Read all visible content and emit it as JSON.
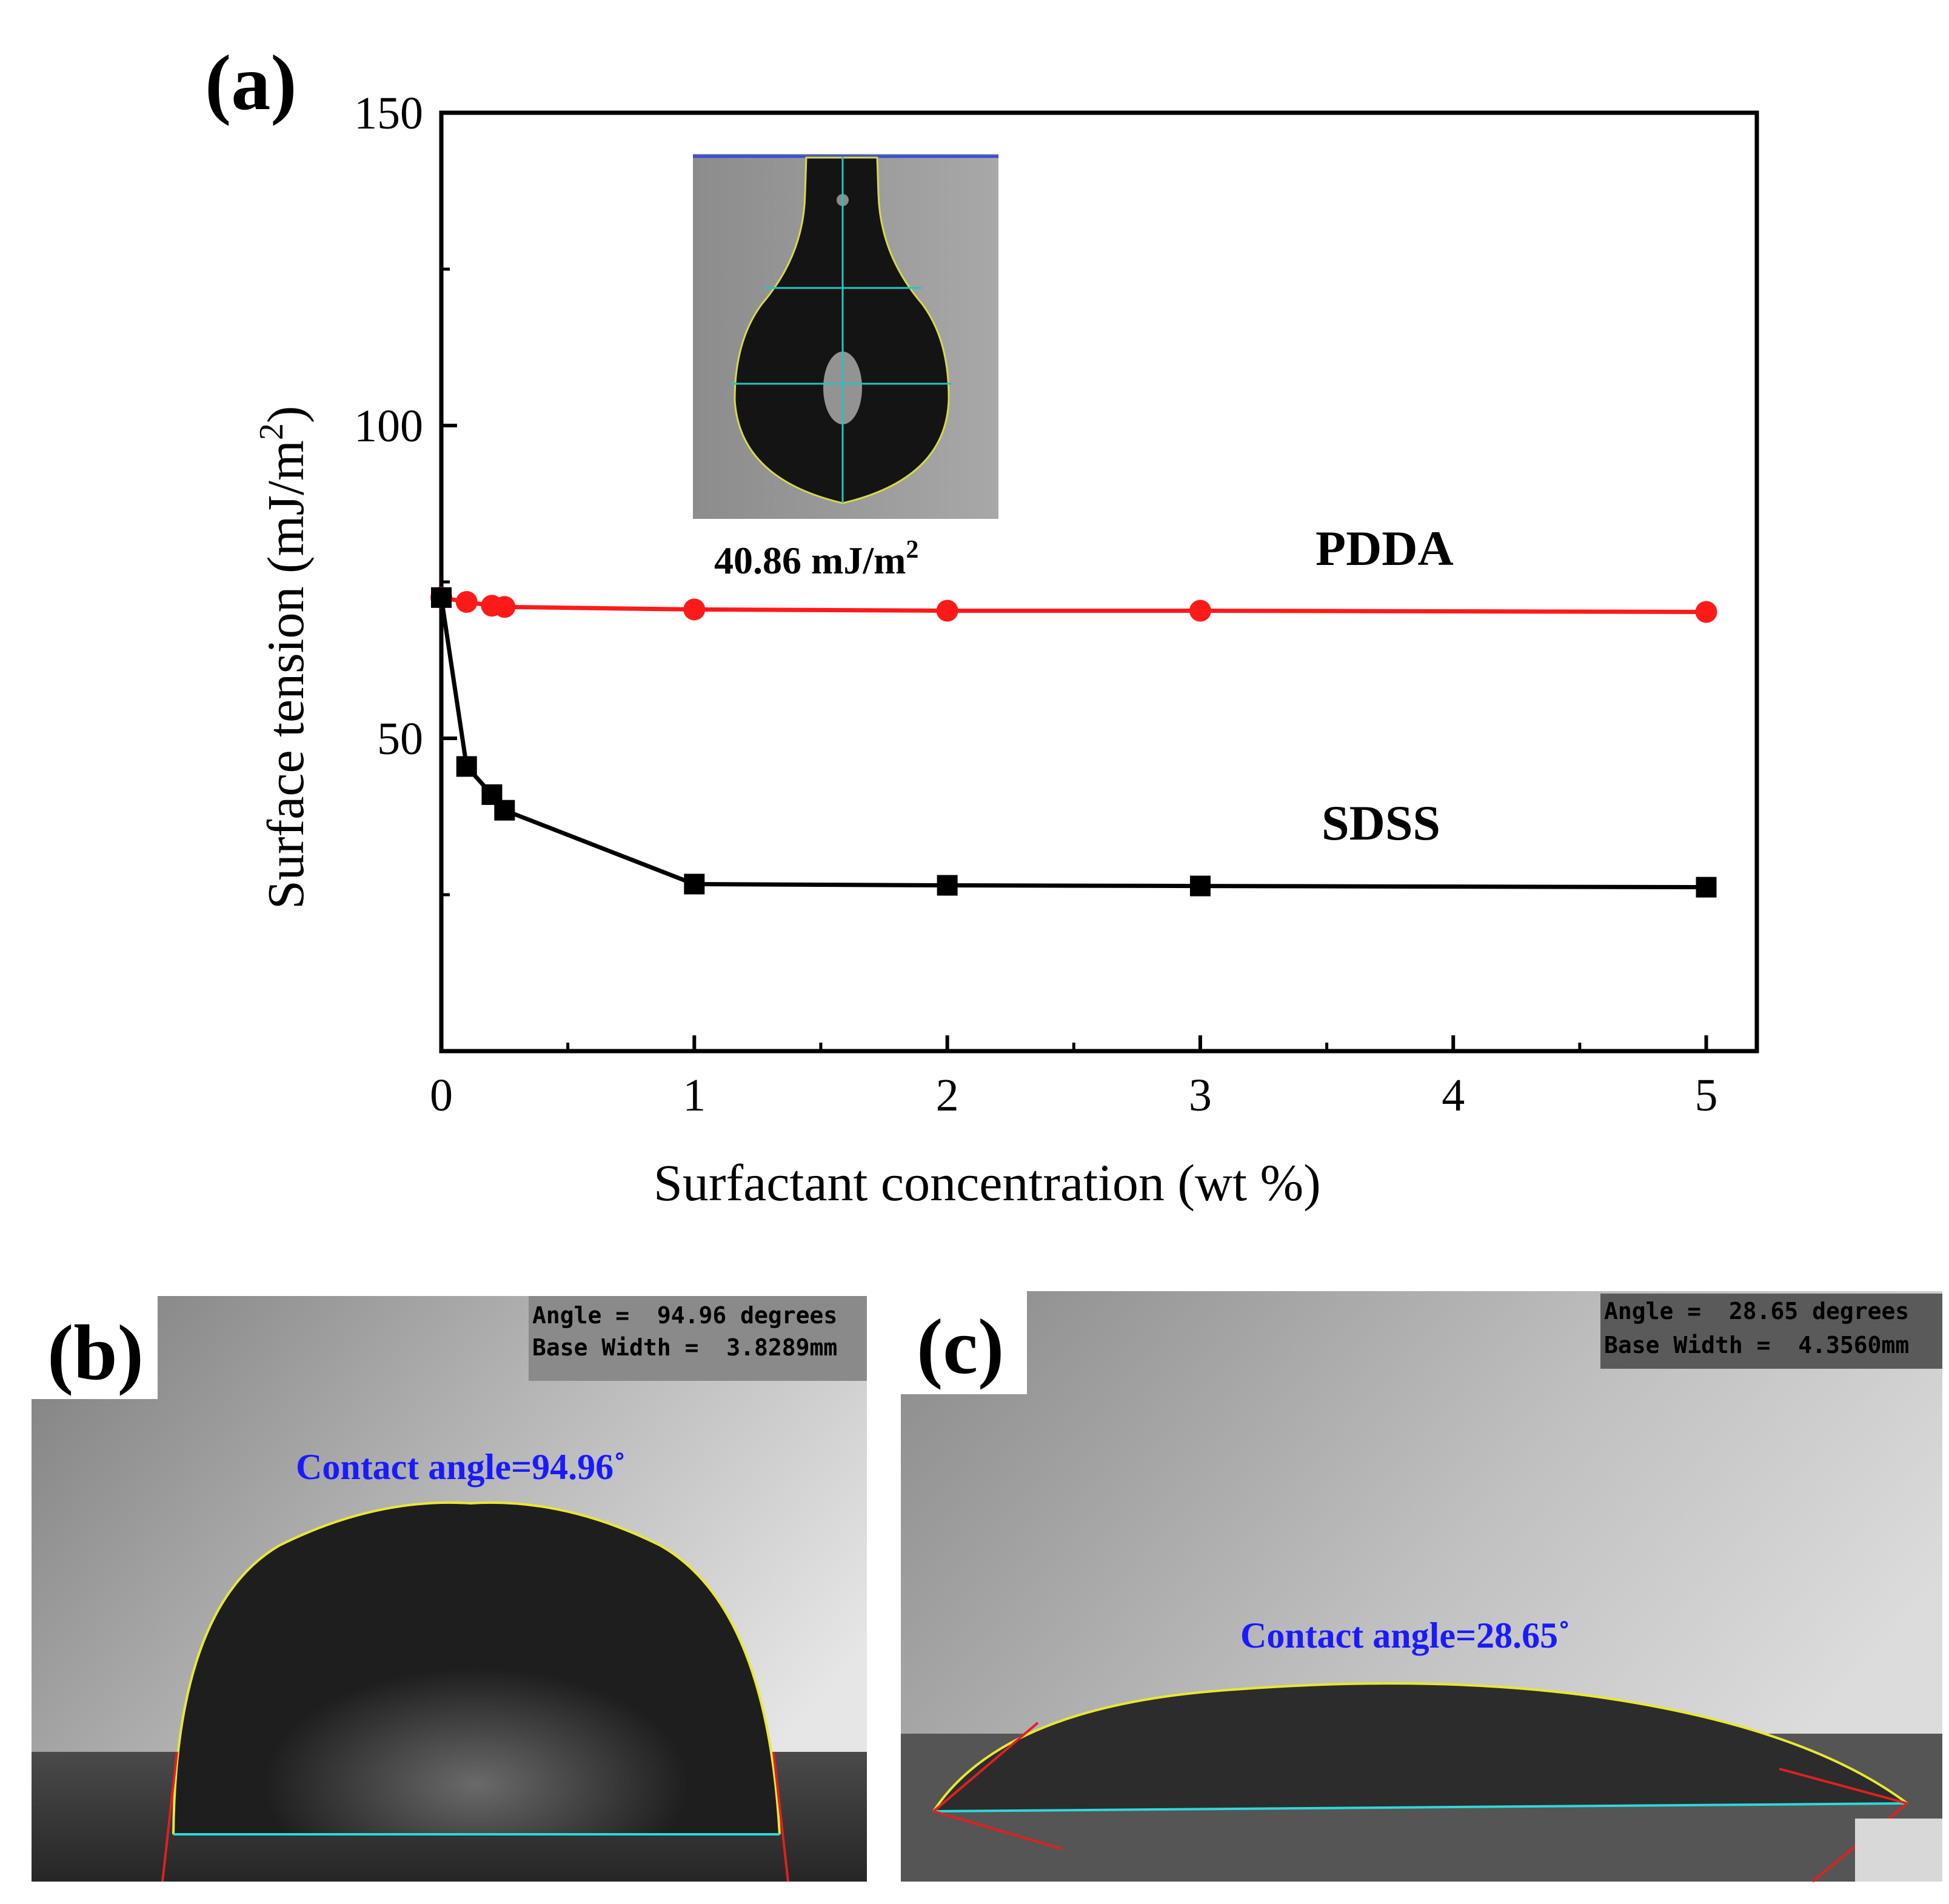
{
  "chart_data": {
    "type": "line",
    "panel_label": "(a)",
    "xlabel": "Surfactant concentration (wt %)",
    "ylabel": "Surface tension (mJ/m",
    "ylabel_sup": "2",
    "ylabel_close": ")",
    "xlim": [
      0,
      5.2
    ],
    "ylim": [
      0,
      150
    ],
    "x_ticks": [
      "0",
      "1",
      "2",
      "3",
      "4",
      "5"
    ],
    "y_ticks": [
      "50",
      "100",
      "150"
    ],
    "series": [
      {
        "name": "PDDA",
        "color": "#ff1a1a",
        "marker": "circle",
        "x": [
          0,
          0.1,
          0.2,
          0.25,
          1,
          2,
          3,
          5
        ],
        "values": [
          72.5,
          71.8,
          71.2,
          71.0,
          70.6,
          70.4,
          70.4,
          70.2
        ]
      },
      {
        "name": "SDSS",
        "color": "#000000",
        "marker": "square",
        "x": [
          0,
          0.1,
          0.2,
          0.25,
          1,
          2,
          3,
          5
        ],
        "values": [
          72.5,
          45.5,
          41.0,
          38.5,
          26.7,
          26.5,
          26.4,
          26.2
        ]
      }
    ],
    "inset_caption": "40.86 mJ/m",
    "inset_caption_sup": "2"
  },
  "panel_b": {
    "label": "(b)",
    "info_line1": "Angle =  94.96 degrees",
    "info_line2": "Base Width =  3.8289mm",
    "contact_angle": "Contact angle=94.96˚"
  },
  "panel_c": {
    "label": "(c)",
    "info_line1": "Angle =  28.65 degrees",
    "info_line2": "Base Width =  4.3560mm",
    "contact_angle": "Contact angle=28.65˚"
  }
}
